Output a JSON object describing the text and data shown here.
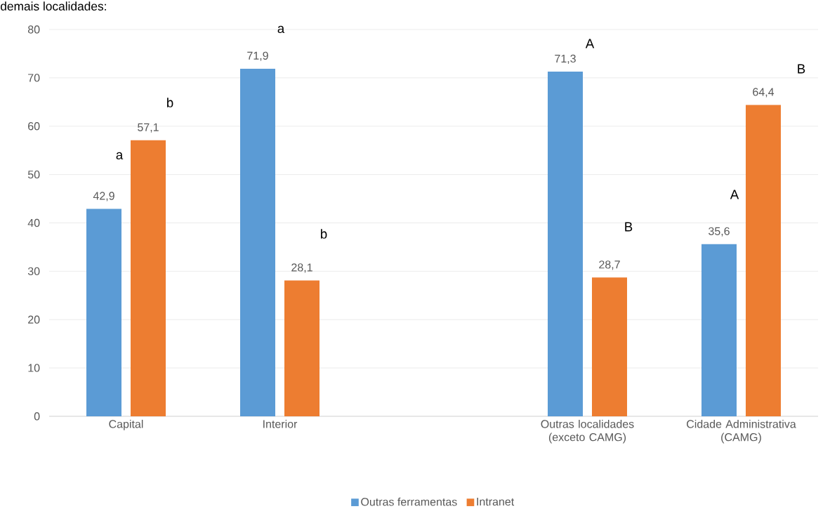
{
  "chart_data": {
    "type": "bar",
    "categories": [
      "Capital",
      "Interior",
      null,
      "Outras localidades (exceto CAMG)",
      "Cidade Administrativa (CAMG)"
    ],
    "series": [
      {
        "name": "Outras ferramentas",
        "color": "#5b9bd5",
        "values": [
          42.9,
          71.9,
          null,
          71.3,
          35.6
        ],
        "value_labels": [
          "42,9",
          "71,9",
          null,
          "71,3",
          "35,6"
        ]
      },
      {
        "name": "Intranet",
        "color": "#ed7d31",
        "values": [
          57.1,
          28.1,
          null,
          28.7,
          64.4
        ],
        "value_labels": [
          "57,1",
          "28,1",
          null,
          "28,7",
          "64,4"
        ]
      }
    ],
    "ylim": [
      0,
      80
    ],
    "yticks": [
      0,
      10,
      20,
      30,
      40,
      50,
      60,
      70,
      80
    ],
    "grid": "y",
    "legend": "bottom",
    "annotations": [
      "demais localidades:",
      "a",
      "b",
      "a",
      "b",
      "A",
      "B",
      "A",
      "B"
    ]
  }
}
